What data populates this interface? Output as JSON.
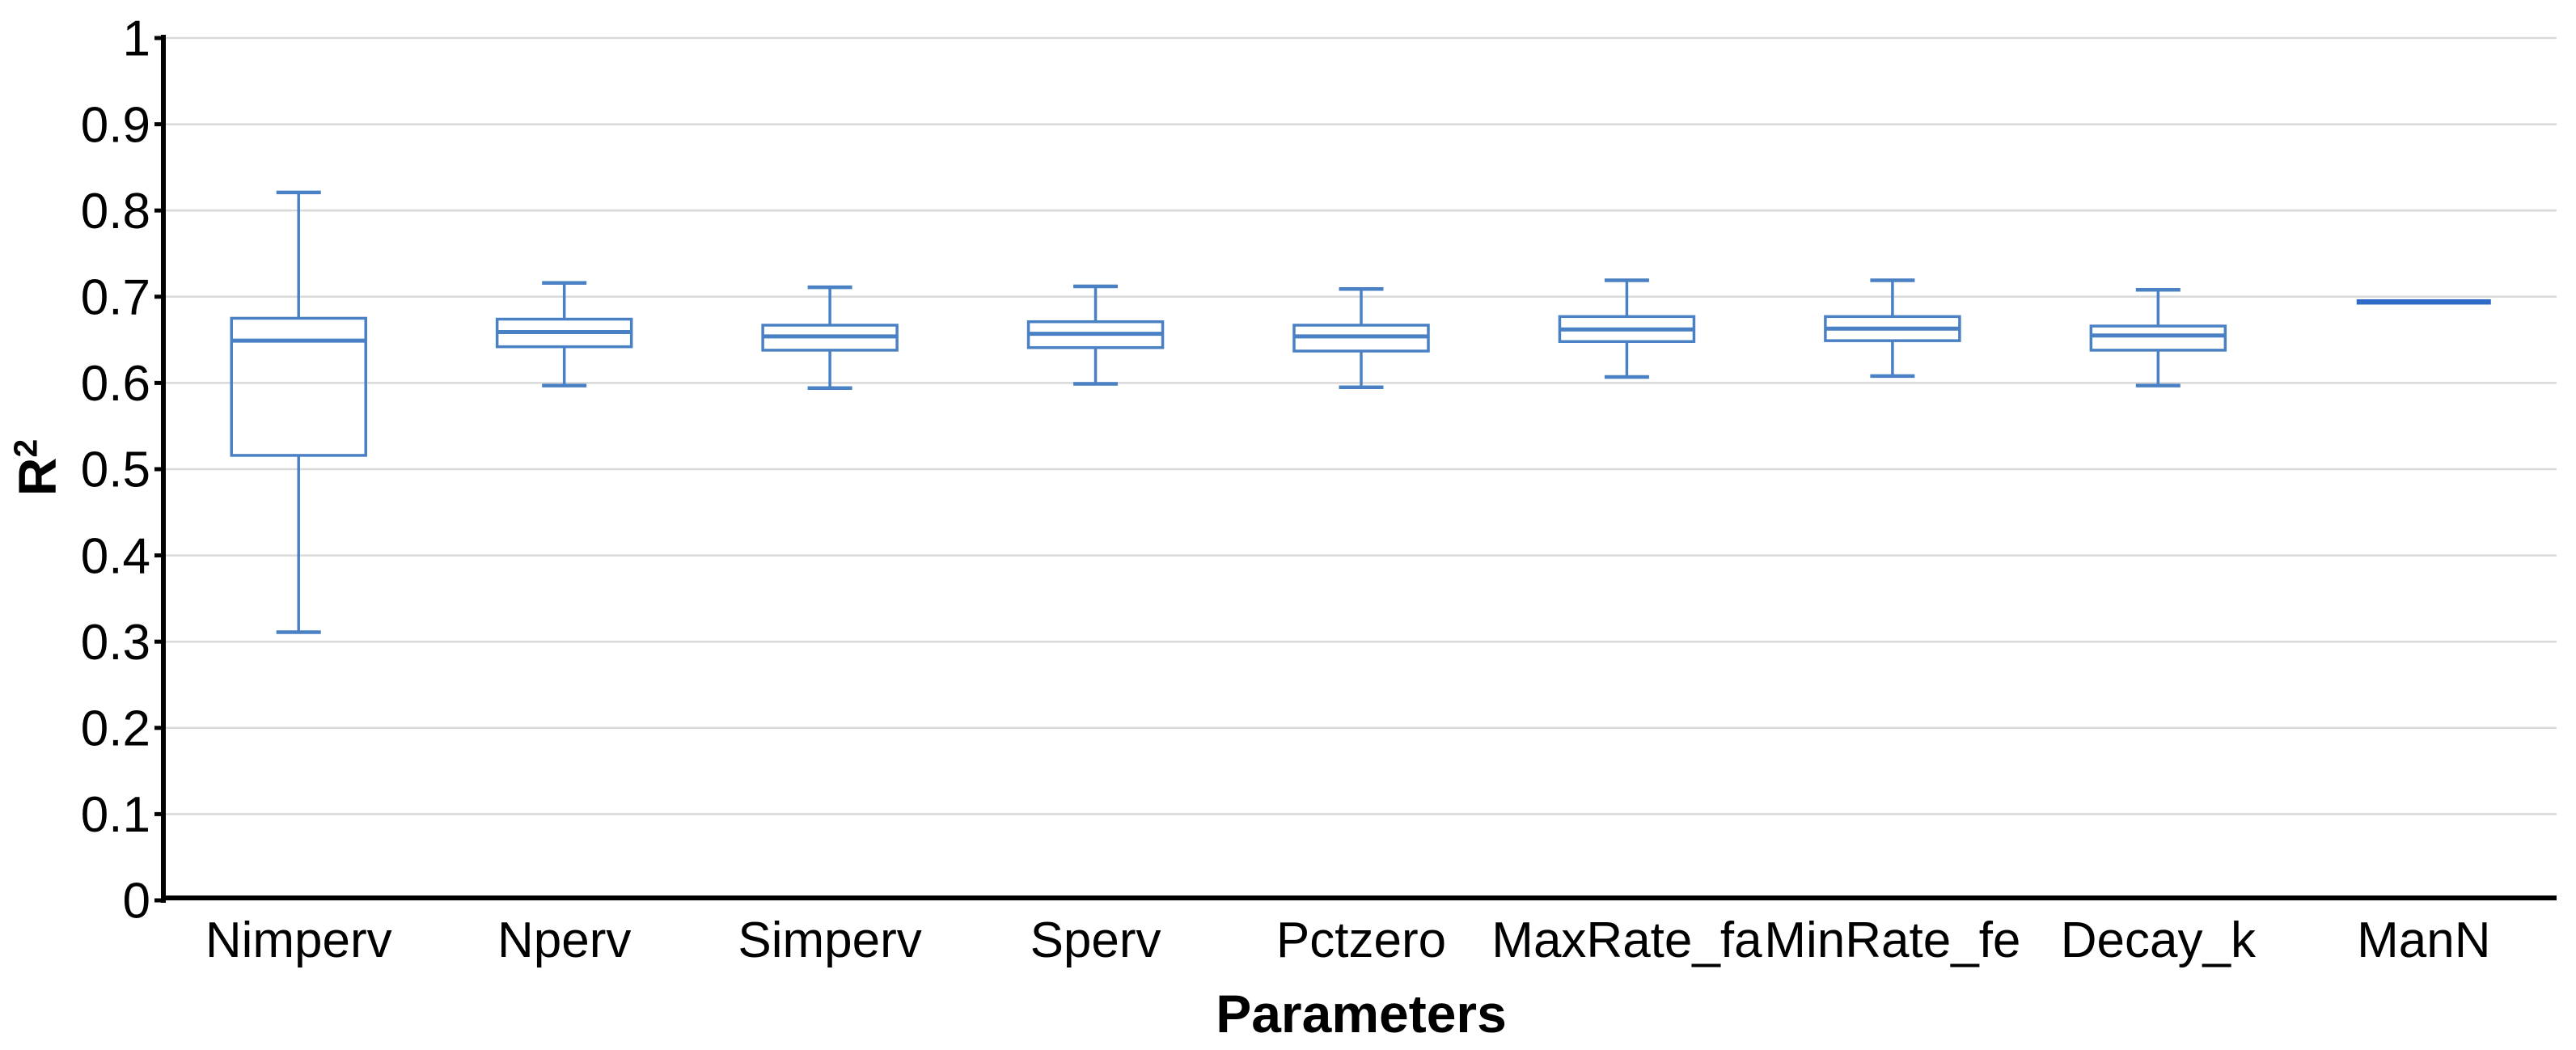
{
  "chart_data": {
    "type": "boxplot",
    "title": "",
    "xlabel": "Parameters",
    "ylabel": "R²",
    "ylabel_base": "R",
    "ylabel_sup": "2",
    "grid": "horizontal",
    "legend": "none",
    "ylim": [
      0,
      1
    ],
    "ytick_step": 0.1,
    "yticks": [
      {
        "v": 1,
        "label": "1"
      },
      {
        "v": 0.9,
        "label": "0.9"
      },
      {
        "v": 0.8,
        "label": "0.8"
      },
      {
        "v": 0.7,
        "label": "0.7"
      },
      {
        "v": 0.6,
        "label": "0.6"
      },
      {
        "v": 0.5,
        "label": "0.5"
      },
      {
        "v": 0.4,
        "label": "0.4"
      },
      {
        "v": 0.3,
        "label": "0.3"
      },
      {
        "v": 0.2,
        "label": "0.2"
      },
      {
        "v": 0.1,
        "label": "0.1"
      },
      {
        "v": 0,
        "label": "0"
      }
    ],
    "categories": [
      "Nimperv",
      "Nperv",
      "Simperv",
      "Sperv",
      "Pctzero",
      "MaxRate_fa",
      "MinRate_fe",
      "Decay_k",
      "ManN"
    ],
    "series": [
      {
        "name": "Nimperv",
        "low": 0.311,
        "q1": 0.516,
        "median": 0.649,
        "q3": 0.675,
        "high": 0.821
      },
      {
        "name": "Nperv",
        "low": 0.597,
        "q1": 0.642,
        "median": 0.659,
        "q3": 0.674,
        "high": 0.716
      },
      {
        "name": "Simperv",
        "low": 0.594,
        "q1": 0.638,
        "median": 0.654,
        "q3": 0.667,
        "high": 0.711
      },
      {
        "name": "Sperv",
        "low": 0.599,
        "q1": 0.641,
        "median": 0.657,
        "q3": 0.671,
        "high": 0.712
      },
      {
        "name": "Pctzero",
        "low": 0.595,
        "q1": 0.637,
        "median": 0.654,
        "q3": 0.667,
        "high": 0.709
      },
      {
        "name": "MaxRate_fa",
        "low": 0.607,
        "q1": 0.648,
        "median": 0.662,
        "q3": 0.677,
        "high": 0.719
      },
      {
        "name": "MinRate_fe",
        "low": 0.608,
        "q1": 0.649,
        "median": 0.663,
        "q3": 0.677,
        "high": 0.719
      },
      {
        "name": "Decay_k",
        "low": 0.597,
        "q1": 0.638,
        "median": 0.655,
        "q3": 0.666,
        "high": 0.708
      },
      {
        "name": "ManN",
        "low": 0.694,
        "q1": 0.694,
        "median": 0.694,
        "q3": 0.694,
        "high": 0.694
      }
    ],
    "colors": {
      "box_stroke": "#4a80c4",
      "box_fill": "none",
      "median": "#4a80c4",
      "collapsed_line": "#2d6bc7",
      "grid": "#d9d9d9",
      "axis": "#000000",
      "text": "#000000"
    }
  }
}
